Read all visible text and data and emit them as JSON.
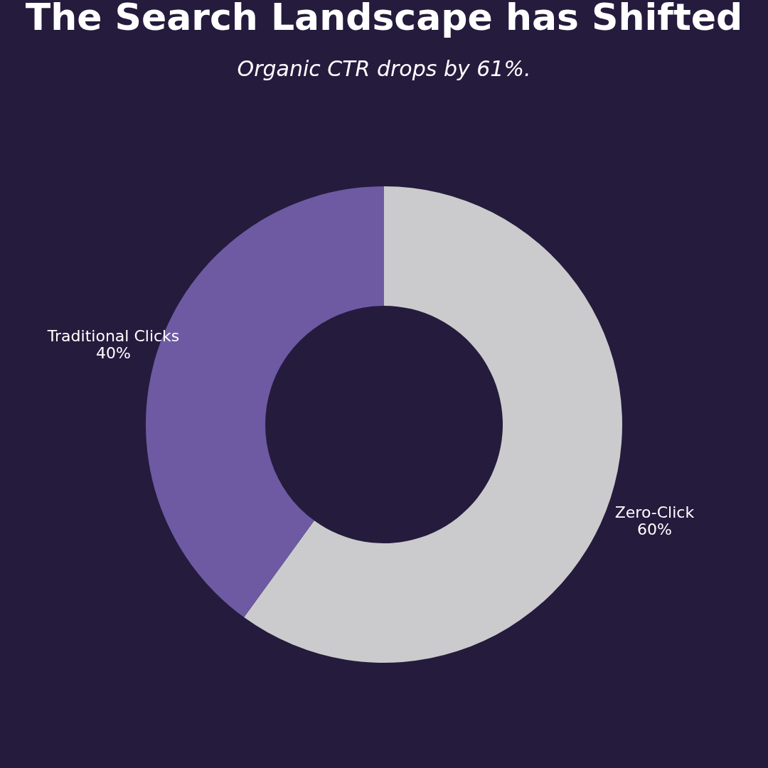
{
  "chart_data": {
    "type": "donut",
    "title": "The Search Landscape has Shifted",
    "subtitle": "Organic CTR drops by 61%.",
    "categories": [
      "Zero-Click",
      "Traditional Clicks"
    ],
    "values": [
      60,
      40
    ],
    "colors": [
      "#cbcbcd",
      "#6e5aa3"
    ],
    "value_labels": [
      "60%",
      "40%"
    ],
    "legend": false
  }
}
